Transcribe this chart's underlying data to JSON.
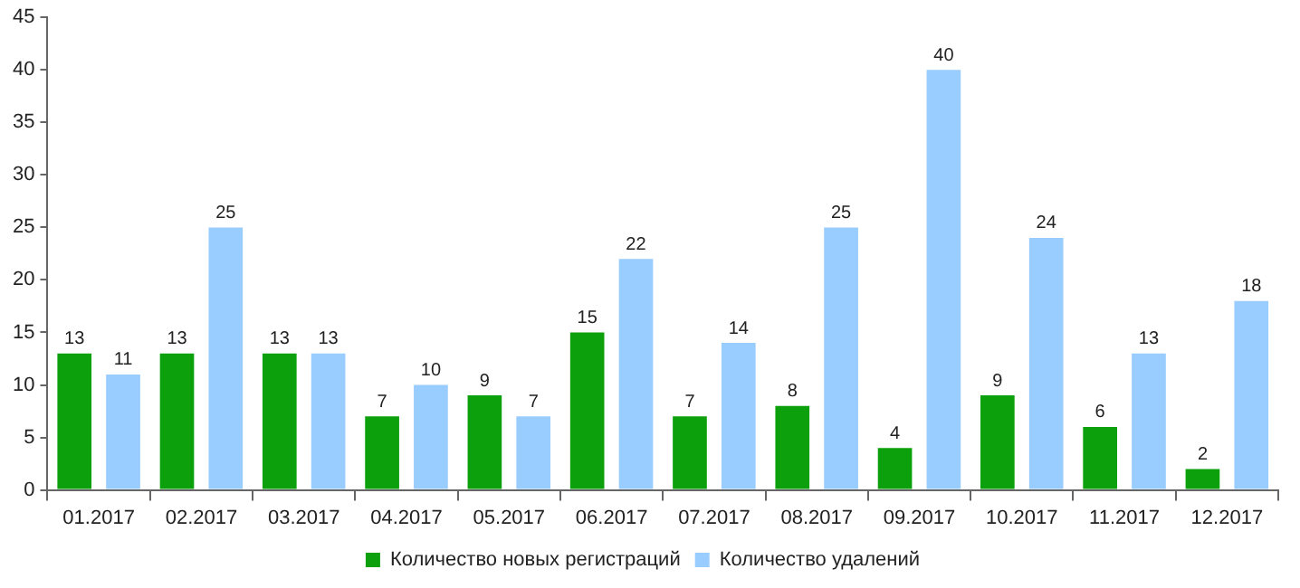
{
  "chart_data": {
    "type": "bar",
    "categories": [
      "01.2017",
      "02.2017",
      "03.2017",
      "04.2017",
      "05.2017",
      "06.2017",
      "07.2017",
      "08.2017",
      "09.2017",
      "10.2017",
      "11.2017",
      "12.2017"
    ],
    "series": [
      {
        "name": "Количество новых регистраций",
        "color": "#0ca00c",
        "values": [
          13,
          13,
          13,
          7,
          9,
          15,
          7,
          8,
          4,
          9,
          6,
          2
        ]
      },
      {
        "name": "Количество удалений",
        "color": "#99ccff",
        "values": [
          11,
          25,
          13,
          10,
          7,
          22,
          14,
          25,
          40,
          24,
          13,
          18
        ]
      }
    ],
    "ylim": [
      0,
      45
    ],
    "yticks": [
      0,
      5,
      10,
      15,
      20,
      25,
      30,
      35,
      40,
      45
    ],
    "grid": false,
    "legend": "bottom",
    "data_labels": true
  }
}
